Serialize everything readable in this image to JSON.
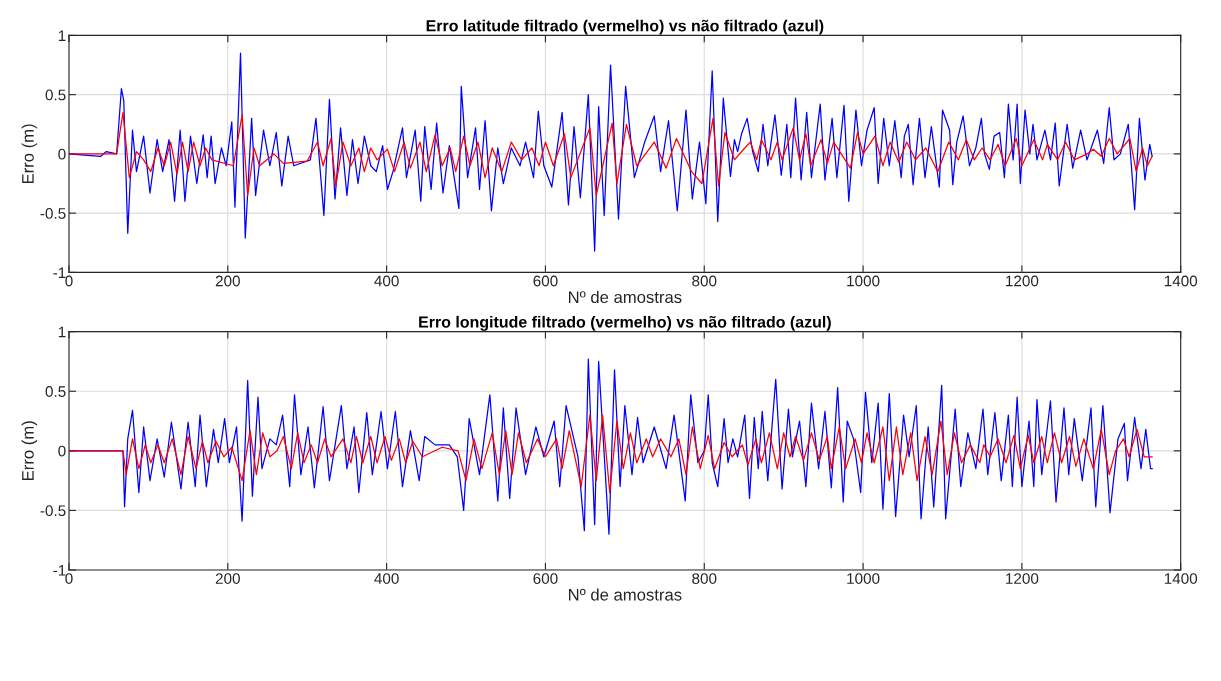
{
  "chart_data": [
    {
      "type": "line",
      "title": "Erro latitude filtrado (vermelho) vs não filtrado (azul)",
      "xlabel": "Nº de amostras",
      "ylabel": "Erro (m)",
      "xlim": [
        0,
        1400
      ],
      "ylim": [
        -1,
        1
      ],
      "xticks": [
        0,
        200,
        400,
        600,
        800,
        1000,
        1200,
        1400
      ],
      "yticks": [
        -1,
        -0.5,
        0,
        0.5,
        1
      ],
      "grid": true,
      "marker": "none",
      "line_style": "solid",
      "series": [
        {
          "color": "#0000ff",
          "x": [
            0,
            40,
            47,
            60,
            66,
            69,
            74,
            80,
            85,
            94,
            102,
            111,
            118,
            126,
            133,
            140,
            146,
            153,
            161,
            169,
            174,
            179,
            184,
            192,
            198,
            205,
            209,
            216,
            222,
            230,
            235,
            245,
            253,
            261,
            268,
            276,
            283,
            304,
            311,
            321,
            328,
            335,
            342,
            350,
            357,
            364,
            372,
            380,
            387,
            395,
            401,
            408,
            420,
            425,
            436,
            443,
            448,
            456,
            463,
            471,
            479,
            491,
            494,
            502,
            512,
            517,
            524,
            532,
            540,
            547,
            557,
            568,
            575,
            585,
            591,
            598,
            608,
            621,
            629,
            636,
            644,
            654,
            662,
            667,
            674,
            682,
            692,
            701,
            712,
            725,
            737,
            745,
            755,
            766,
            777,
            785,
            794,
            802,
            810,
            817,
            824,
            833,
            838,
            842,
            847,
            854,
            861,
            868,
            874,
            880,
            889,
            897,
            904,
            909,
            915,
            922,
            929,
            935,
            946,
            952,
            961,
            967,
            976,
            982,
            991,
            998,
            1005,
            1014,
            1019,
            1026,
            1033,
            1040,
            1048,
            1052,
            1057,
            1063,
            1071,
            1078,
            1086,
            1096,
            1100,
            1109,
            1113,
            1118,
            1126,
            1134,
            1142,
            1149,
            1153,
            1159,
            1165,
            1172,
            1178,
            1183,
            1189,
            1194,
            1198,
            1204,
            1210,
            1214,
            1219,
            1229,
            1236,
            1242,
            1247,
            1257,
            1264,
            1274,
            1282,
            1295,
            1303,
            1310,
            1316,
            1324,
            1334,
            1342,
            1348,
            1355,
            1361,
            1364
          ],
          "values": [
            0,
            -0.02,
            0.02,
            0,
            0.55,
            0.45,
            -0.67,
            0.2,
            -0.15,
            0.15,
            -0.33,
            0.12,
            -0.15,
            0.12,
            -0.4,
            0.2,
            -0.4,
            0.15,
            -0.25,
            0.16,
            -0.2,
            0.15,
            -0.25,
            0.05,
            -0.1,
            0.27,
            -0.45,
            0.85,
            -0.71,
            0.3,
            -0.35,
            0.2,
            -0.1,
            0.18,
            -0.27,
            0.15,
            -0.1,
            -0.05,
            0.3,
            -0.52,
            0.46,
            -0.38,
            0.22,
            -0.35,
            0.12,
            -0.25,
            0.15,
            -0.1,
            -0.15,
            0.07,
            -0.3,
            -0.15,
            0.22,
            -0.2,
            0.2,
            -0.4,
            0.23,
            -0.3,
            0.26,
            -0.33,
            0.07,
            -0.46,
            0.57,
            -0.2,
            0.22,
            -0.3,
            0.28,
            -0.48,
            0.05,
            -0.25,
            0.05,
            -0.1,
            0.1,
            -0.2,
            0.36,
            -0.1,
            -0.28,
            0.35,
            -0.43,
            0.23,
            -0.37,
            0.5,
            -0.82,
            0.4,
            -0.52,
            0.75,
            -0.55,
            0.57,
            -0.2,
            0.1,
            0.32,
            -0.15,
            0.28,
            -0.48,
            0.37,
            -0.38,
            0.1,
            -0.42,
            0.7,
            -0.57,
            0.47,
            -0.19,
            0.12,
            0.02,
            0.17,
            0.3,
            0.02,
            -0.15,
            0.25,
            -0.1,
            0.33,
            -0.18,
            0.25,
            -0.2,
            0.47,
            -0.22,
            0.35,
            -0.2,
            0.42,
            -0.22,
            0.3,
            -0.2,
            0.41,
            -0.4,
            0.37,
            -0.1,
            0.2,
            0.39,
            -0.25,
            0.3,
            -0.1,
            0.28,
            -0.2,
            0.15,
            0.25,
            -0.26,
            0.3,
            -0.2,
            0.23,
            -0.28,
            0.37,
            0.2,
            -0.26,
            0.1,
            0.32,
            -0.1,
            0.05,
            0.3,
            0,
            -0.13,
            0.15,
            0.18,
            -0.2,
            0.42,
            -0.05,
            0.42,
            -0.25,
            0.37,
            0,
            0.25,
            -0.05,
            0.2,
            -0.05,
            0.26,
            -0.27,
            0.25,
            -0.12,
            0.2,
            -0.05,
            0.2,
            -0.08,
            0.39,
            -0.05,
            0,
            0.25,
            -0.47,
            0.3,
            -0.22,
            0.08,
            -0.02
          ]
        },
        {
          "color": "#ff0000",
          "x": [
            0,
            60,
            68,
            76,
            85,
            94,
            103,
            112,
            120,
            128,
            136,
            143,
            150,
            157,
            165,
            172,
            180,
            207,
            218,
            225,
            233,
            240,
            258,
            270,
            300,
            313,
            320,
            330,
            336,
            345,
            355,
            365,
            372,
            380,
            388,
            401,
            410,
            422,
            430,
            442,
            450,
            461,
            470,
            480,
            487,
            497,
            505,
            515,
            524,
            533,
            545,
            557,
            570,
            583,
            592,
            600,
            610,
            624,
            632,
            656,
            664,
            684,
            690,
            702,
            715,
            737,
            752,
            765,
            784,
            797,
            811,
            818,
            826,
            838,
            851,
            858,
            866,
            872,
            884,
            892,
            898,
            912,
            920,
            928,
            934,
            947,
            955,
            963,
            984,
            993,
            1000,
            1015,
            1025,
            1034,
            1045,
            1055,
            1066,
            1079,
            1094,
            1108,
            1120,
            1130,
            1140,
            1150,
            1160,
            1170,
            1179,
            1193,
            1200,
            1215,
            1226,
            1232,
            1245,
            1255,
            1266,
            1282,
            1290,
            1300,
            1310,
            1320,
            1336,
            1344,
            1352,
            1358,
            1364
          ],
          "values": [
            0,
            0,
            0.35,
            -0.2,
            0.02,
            -0.05,
            -0.15,
            0.05,
            -0.1,
            0.1,
            -0.17,
            0.1,
            -0.15,
            0.1,
            -0.1,
            0.05,
            -0.05,
            -0.1,
            0.33,
            -0.35,
            0.05,
            -0.1,
            0,
            -0.08,
            -0.06,
            0.1,
            -0.1,
            0.13,
            -0.27,
            0.1,
            -0.1,
            0.05,
            -0.15,
            0.05,
            -0.05,
            0.04,
            -0.15,
            0.1,
            -0.12,
            0.1,
            -0.15,
            0.16,
            -0.1,
            0.05,
            -0.15,
            0.15,
            -0.1,
            0.1,
            -0.2,
            0.05,
            -0.15,
            0.1,
            -0.05,
            0.05,
            -0.1,
            0.1,
            -0.1,
            0.17,
            -0.2,
            0.22,
            -0.35,
            0.26,
            -0.25,
            0.25,
            -0.1,
            0.1,
            -0.12,
            0.13,
            -0.15,
            -0.25,
            0.3,
            -0.27,
            0.18,
            -0.05,
            0.05,
            0.1,
            -0.05,
            0.12,
            -0.05,
            0.1,
            -0.05,
            0.22,
            -0.05,
            0.17,
            -0.1,
            0.12,
            -0.08,
            0.1,
            -0.12,
            0.18,
            0,
            0.15,
            -0.1,
            0.1,
            -0.07,
            0.1,
            -0.05,
            0.05,
            -0.15,
            0.1,
            -0.05,
            0.12,
            -0.05,
            0.05,
            -0.05,
            0.08,
            -0.1,
            0.13,
            -0.1,
            0.12,
            -0.05,
            0.08,
            -0.05,
            0.1,
            -0.05,
            0,
            0.04,
            -0.02,
            0.13,
            0,
            0.13,
            -0.15,
            0.05,
            -0.1,
            -0.02
          ]
        }
      ]
    },
    {
      "type": "line",
      "title": "Erro longitude filtrado (vermelho) vs não filtrado (azul)",
      "xlabel": "Nº de amostras",
      "ylabel": "Erro (m)",
      "xlim": [
        0,
        1400
      ],
      "ylim": [
        -1,
        1
      ],
      "xticks": [
        0,
        200,
        400,
        600,
        800,
        1000,
        1200,
        1400
      ],
      "yticks": [
        -1,
        -0.5,
        0,
        0.5,
        1
      ],
      "grid": true,
      "marker": "none",
      "line_style": "solid",
      "series": [
        {
          "color": "#0000ff",
          "x": [
            0,
            68,
            70,
            74,
            80,
            88,
            94,
            102,
            111,
            120,
            129,
            141,
            150,
            159,
            165,
            173,
            182,
            188,
            196,
            202,
            211,
            218,
            225,
            231,
            238,
            243,
            253,
            261,
            269,
            278,
            284,
            292,
            301,
            309,
            320,
            328,
            343,
            350,
            359,
            365,
            375,
            382,
            393,
            401,
            411,
            420,
            430,
            441,
            448,
            461,
            479,
            489,
            497,
            504,
            517,
            530,
            540,
            547,
            555,
            563,
            575,
            588,
            598,
            611,
            618,
            626,
            641,
            649,
            654,
            662,
            667,
            680,
            687,
            694,
            700,
            709,
            716,
            723,
            737,
            752,
            762,
            776,
            783,
            792,
            800,
            805,
            810,
            817,
            825,
            830,
            836,
            842,
            851,
            857,
            863,
            868,
            873,
            880,
            890,
            898,
            906,
            911,
            920,
            928,
            935,
            944,
            952,
            960,
            968,
            975,
            980,
            988,
            997,
            1003,
            1011,
            1019,
            1025,
            1033,
            1041,
            1051,
            1058,
            1067,
            1073,
            1082,
            1089,
            1099,
            1104,
            1116,
            1123,
            1132,
            1142,
            1151,
            1157,
            1166,
            1174,
            1183,
            1188,
            1194,
            1200,
            1209,
            1215,
            1219,
            1225,
            1236,
            1243,
            1253,
            1259,
            1266,
            1276,
            1287,
            1293,
            1302,
            1311,
            1321,
            1329,
            1333,
            1342,
            1350,
            1356,
            1362,
            1364
          ],
          "values": [
            0,
            0,
            -0.47,
            0.1,
            0.34,
            -0.35,
            0.2,
            -0.25,
            0.1,
            -0.22,
            0.24,
            -0.32,
            0.24,
            -0.3,
            0.3,
            -0.3,
            0.18,
            -0.1,
            0.27,
            -0.1,
            0.2,
            -0.59,
            0.59,
            -0.38,
            0.45,
            -0.15,
            0.1,
            0.05,
            0.3,
            -0.3,
            0.47,
            -0.2,
            0.2,
            -0.31,
            0.37,
            -0.25,
            0.38,
            -0.15,
            0.2,
            -0.35,
            0.32,
            -0.2,
            0.33,
            -0.15,
            0.33,
            -0.3,
            0.17,
            -0.25,
            0.12,
            0.05,
            0.05,
            -0.05,
            -0.5,
            0.27,
            -0.2,
            0.47,
            -0.42,
            0.36,
            -0.4,
            0.36,
            -0.2,
            0.2,
            -0.05,
            0.25,
            -0.3,
            0.38,
            -0.05,
            -0.67,
            0.77,
            -0.62,
            0.75,
            -0.7,
            0.68,
            -0.3,
            0.38,
            -0.2,
            0.28,
            -0.1,
            0.2,
            -0.15,
            0.3,
            -0.42,
            0.47,
            -0.1,
            0,
            0.47,
            -0.1,
            -0.3,
            0.27,
            -0.1,
            0.1,
            -0.05,
            0.3,
            -0.4,
            0.28,
            -0.15,
            0.33,
            -0.25,
            0.6,
            -0.32,
            0.35,
            -0.05,
            0.25,
            -0.3,
            0.4,
            -0.15,
            0.33,
            -0.31,
            0.53,
            -0.43,
            0.25,
            0.1,
            -0.35,
            0.49,
            -0.1,
            0.4,
            -0.49,
            0.48,
            -0.55,
            0.3,
            -0.05,
            0.38,
            -0.57,
            0.2,
            -0.47,
            0.55,
            -0.57,
            0.35,
            -0.3,
            0.15,
            -0.15,
            0.35,
            -0.2,
            0.32,
            -0.25,
            0.3,
            -0.3,
            0.45,
            -0.3,
            0.25,
            -0.3,
            0.43,
            -0.2,
            0.42,
            -0.43,
            0.36,
            -0.2,
            0.27,
            -0.25,
            0.36,
            -0.47,
            0.38,
            -0.52,
            0.1,
            0.23,
            -0.25,
            0.28,
            -0.15,
            0.18,
            -0.15,
            -0.15
          ]
        },
        {
          "color": "#ff0000",
          "x": [
            0,
            68,
            72,
            80,
            88,
            96,
            103,
            112,
            120,
            130,
            141,
            150,
            160,
            168,
            175,
            185,
            195,
            205,
            218,
            228,
            236,
            244,
            253,
            262,
            270,
            280,
            288,
            296,
            305,
            313,
            322,
            330,
            345,
            355,
            362,
            370,
            380,
            388,
            398,
            406,
            416,
            424,
            433,
            445,
            470,
            490,
            500,
            510,
            520,
            533,
            542,
            550,
            558,
            566,
            576,
            590,
            600,
            614,
            621,
            630,
            645,
            656,
            664,
            672,
            681,
            690,
            698,
            707,
            715,
            727,
            735,
            745,
            758,
            768,
            777,
            785,
            795,
            805,
            813,
            825,
            835,
            848,
            855,
            865,
            872,
            882,
            892,
            900,
            908,
            915,
            925,
            935,
            945,
            955,
            960,
            970,
            978,
            990,
            998,
            1005,
            1014,
            1025,
            1033,
            1042,
            1050,
            1060,
            1068,
            1078,
            1087,
            1098,
            1106,
            1115,
            1124,
            1135,
            1147,
            1152,
            1160,
            1170,
            1180,
            1190,
            1198,
            1208,
            1215,
            1225,
            1232,
            1241,
            1250,
            1260,
            1268,
            1278,
            1290,
            1300,
            1310,
            1318,
            1328,
            1335,
            1345,
            1354,
            1364
          ],
          "values": [
            0,
            0,
            -0.2,
            0.1,
            -0.15,
            0.05,
            -0.1,
            0.05,
            -0.1,
            0.1,
            -0.2,
            0.12,
            -0.15,
            0.08,
            -0.1,
            0.08,
            -0.05,
            0.03,
            -0.25,
            0.17,
            -0.2,
            0.15,
            -0.05,
            0,
            0.12,
            -0.15,
            0.15,
            -0.1,
            0.05,
            -0.1,
            0.1,
            -0.05,
            0.1,
            -0.1,
            0.12,
            -0.1,
            0.12,
            -0.1,
            0.12,
            -0.08,
            0.1,
            -0.1,
            0.08,
            -0.05,
            0.03,
            0,
            -0.25,
            0.1,
            -0.15,
            0.15,
            -0.2,
            0.17,
            -0.2,
            0.15,
            -0.1,
            0.1,
            -0.05,
            0.1,
            -0.15,
            0.17,
            -0.3,
            0.3,
            -0.25,
            0.3,
            -0.35,
            0.25,
            -0.15,
            0.15,
            -0.1,
            0.1,
            -0.05,
            0.1,
            -0.05,
            0.1,
            -0.2,
            0.2,
            -0.15,
            0.13,
            -0.15,
            0.07,
            -0.05,
            0.05,
            -0.12,
            0.1,
            -0.1,
            0.15,
            -0.15,
            0.15,
            -0.05,
            0.12,
            -0.08,
            0.15,
            -0.08,
            0.12,
            -0.15,
            0.2,
            -0.15,
            0.1,
            -0.1,
            0.15,
            -0.1,
            0.2,
            -0.25,
            0.2,
            -0.2,
            0.15,
            -0.25,
            0.12,
            -0.2,
            0.25,
            -0.2,
            0.15,
            -0.1,
            0.05,
            -0.1,
            0.05,
            -0.05,
            0.1,
            -0.1,
            0.13,
            -0.15,
            0.13,
            -0.1,
            0.12,
            -0.1,
            0.15,
            -0.1,
            0.12,
            -0.13,
            0.1,
            -0.15,
            0.18,
            -0.2,
            0,
            0.1,
            -0.05,
            0.18,
            -0.05,
            -0.05
          ]
        }
      ]
    }
  ]
}
